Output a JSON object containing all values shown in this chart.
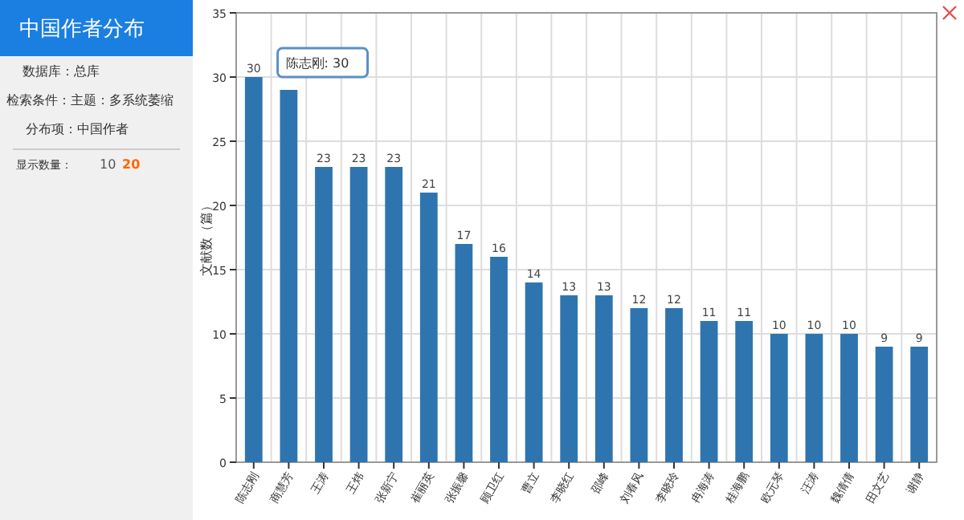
{
  "chart_data": {
    "type": "bar",
    "title": "中国作者分布",
    "annotations": [
      "数据库：总库",
      "检索条件：主题：多系统萎缩",
      "分布项：中国作者",
      "显示数量：",
      "10",
      "20",
      {
        "text": "陈志刚: 30",
        "x": "陈志刚",
        "y": 30
      }
    ],
    "ylabel": "文献数（篇）",
    "categories": [
      "陈志刚",
      "商慧芳",
      "王涛",
      "王炜",
      "张新宁",
      "崔丽英",
      "张振馨",
      "顾卫红",
      "曹立",
      "李晓红",
      "邵峰",
      "刘春风",
      "李晓玲",
      "冉海涛",
      "桂海鹏",
      "欧元琴",
      "汪涛",
      "魏倩倩",
      "田文艺",
      "谢静"
    ],
    "values": [
      30,
      29,
      23,
      23,
      23,
      21,
      17,
      16,
      14,
      13,
      13,
      12,
      12,
      11,
      11,
      10,
      10,
      10,
      9,
      9
    ],
    "value_labels": [
      "30",
      null,
      "23",
      "23",
      "23",
      "21",
      "17",
      "16",
      "14",
      "13",
      "13",
      "12",
      "12",
      "11",
      "11",
      "10",
      "10",
      "10",
      "9",
      "9"
    ],
    "color": "#2e75b0",
    "ylim": [
      0,
      35
    ],
    "yticks": [
      0,
      5,
      10,
      15,
      20,
      25,
      30,
      35
    ],
    "grid": true
  }
}
